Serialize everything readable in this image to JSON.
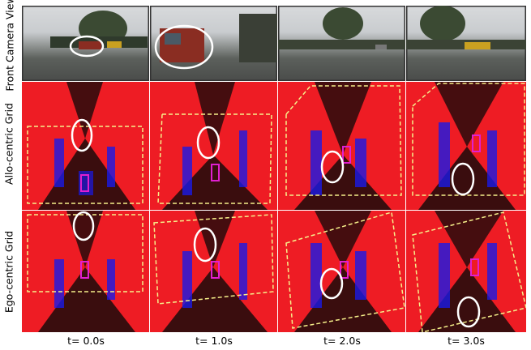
{
  "figure": {
    "row_labels": {
      "camera": "Front Camera View",
      "allo": "Allo-centric Grid",
      "ego": "Ego-centric Grid"
    },
    "time_labels": [
      "t= 0.0s",
      "t= 1.0s",
      "t= 2.0s",
      "t= 3.0s"
    ]
  },
  "colors": {
    "grid_free": "#ee1c24",
    "grid_occupied": "#1a1ae6",
    "unknown": "#1a0a0a",
    "ego_box": "#e020d0",
    "dashed_frame": "#f6f08a",
    "target_ellipse": "#ffffff"
  },
  "icons": {
    "ego_vehicle": "magenta-rectangle-icon",
    "tracked_bus": "white-ellipse-icon"
  }
}
